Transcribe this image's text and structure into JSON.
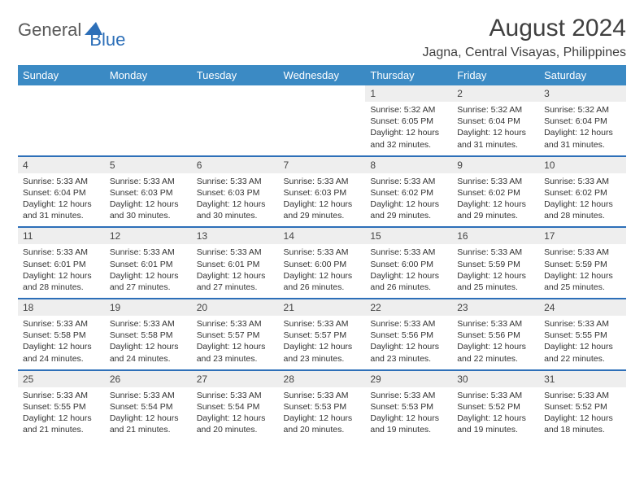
{
  "logo": {
    "text1": "General",
    "text2": "Blue"
  },
  "title": "August 2024",
  "location": "Jagna, Central Visayas, Philippines",
  "colors": {
    "header_bg": "#3b8ac4",
    "header_text": "#ffffff",
    "daynum_bg": "#eeeeee",
    "row_border": "#2d6fb8",
    "logo_gray": "#5a5a5a",
    "logo_blue": "#2d6fb8"
  },
  "day_headers": [
    "Sunday",
    "Monday",
    "Tuesday",
    "Wednesday",
    "Thursday",
    "Friday",
    "Saturday"
  ],
  "weeks": [
    [
      null,
      null,
      null,
      null,
      {
        "n": "1",
        "sr": "5:32 AM",
        "ss": "6:05 PM",
        "dl": "12 hours and 32 minutes."
      },
      {
        "n": "2",
        "sr": "5:32 AM",
        "ss": "6:04 PM",
        "dl": "12 hours and 31 minutes."
      },
      {
        "n": "3",
        "sr": "5:32 AM",
        "ss": "6:04 PM",
        "dl": "12 hours and 31 minutes."
      }
    ],
    [
      {
        "n": "4",
        "sr": "5:33 AM",
        "ss": "6:04 PM",
        "dl": "12 hours and 31 minutes."
      },
      {
        "n": "5",
        "sr": "5:33 AM",
        "ss": "6:03 PM",
        "dl": "12 hours and 30 minutes."
      },
      {
        "n": "6",
        "sr": "5:33 AM",
        "ss": "6:03 PM",
        "dl": "12 hours and 30 minutes."
      },
      {
        "n": "7",
        "sr": "5:33 AM",
        "ss": "6:03 PM",
        "dl": "12 hours and 29 minutes."
      },
      {
        "n": "8",
        "sr": "5:33 AM",
        "ss": "6:02 PM",
        "dl": "12 hours and 29 minutes."
      },
      {
        "n": "9",
        "sr": "5:33 AM",
        "ss": "6:02 PM",
        "dl": "12 hours and 29 minutes."
      },
      {
        "n": "10",
        "sr": "5:33 AM",
        "ss": "6:02 PM",
        "dl": "12 hours and 28 minutes."
      }
    ],
    [
      {
        "n": "11",
        "sr": "5:33 AM",
        "ss": "6:01 PM",
        "dl": "12 hours and 28 minutes."
      },
      {
        "n": "12",
        "sr": "5:33 AM",
        "ss": "6:01 PM",
        "dl": "12 hours and 27 minutes."
      },
      {
        "n": "13",
        "sr": "5:33 AM",
        "ss": "6:01 PM",
        "dl": "12 hours and 27 minutes."
      },
      {
        "n": "14",
        "sr": "5:33 AM",
        "ss": "6:00 PM",
        "dl": "12 hours and 26 minutes."
      },
      {
        "n": "15",
        "sr": "5:33 AM",
        "ss": "6:00 PM",
        "dl": "12 hours and 26 minutes."
      },
      {
        "n": "16",
        "sr": "5:33 AM",
        "ss": "5:59 PM",
        "dl": "12 hours and 25 minutes."
      },
      {
        "n": "17",
        "sr": "5:33 AM",
        "ss": "5:59 PM",
        "dl": "12 hours and 25 minutes."
      }
    ],
    [
      {
        "n": "18",
        "sr": "5:33 AM",
        "ss": "5:58 PM",
        "dl": "12 hours and 24 minutes."
      },
      {
        "n": "19",
        "sr": "5:33 AM",
        "ss": "5:58 PM",
        "dl": "12 hours and 24 minutes."
      },
      {
        "n": "20",
        "sr": "5:33 AM",
        "ss": "5:57 PM",
        "dl": "12 hours and 23 minutes."
      },
      {
        "n": "21",
        "sr": "5:33 AM",
        "ss": "5:57 PM",
        "dl": "12 hours and 23 minutes."
      },
      {
        "n": "22",
        "sr": "5:33 AM",
        "ss": "5:56 PM",
        "dl": "12 hours and 23 minutes."
      },
      {
        "n": "23",
        "sr": "5:33 AM",
        "ss": "5:56 PM",
        "dl": "12 hours and 22 minutes."
      },
      {
        "n": "24",
        "sr": "5:33 AM",
        "ss": "5:55 PM",
        "dl": "12 hours and 22 minutes."
      }
    ],
    [
      {
        "n": "25",
        "sr": "5:33 AM",
        "ss": "5:55 PM",
        "dl": "12 hours and 21 minutes."
      },
      {
        "n": "26",
        "sr": "5:33 AM",
        "ss": "5:54 PM",
        "dl": "12 hours and 21 minutes."
      },
      {
        "n": "27",
        "sr": "5:33 AM",
        "ss": "5:54 PM",
        "dl": "12 hours and 20 minutes."
      },
      {
        "n": "28",
        "sr": "5:33 AM",
        "ss": "5:53 PM",
        "dl": "12 hours and 20 minutes."
      },
      {
        "n": "29",
        "sr": "5:33 AM",
        "ss": "5:53 PM",
        "dl": "12 hours and 19 minutes."
      },
      {
        "n": "30",
        "sr": "5:33 AM",
        "ss": "5:52 PM",
        "dl": "12 hours and 19 minutes."
      },
      {
        "n": "31",
        "sr": "5:33 AM",
        "ss": "5:52 PM",
        "dl": "12 hours and 18 minutes."
      }
    ]
  ],
  "labels": {
    "sunrise": "Sunrise: ",
    "sunset": "Sunset: ",
    "daylight": "Daylight: "
  }
}
